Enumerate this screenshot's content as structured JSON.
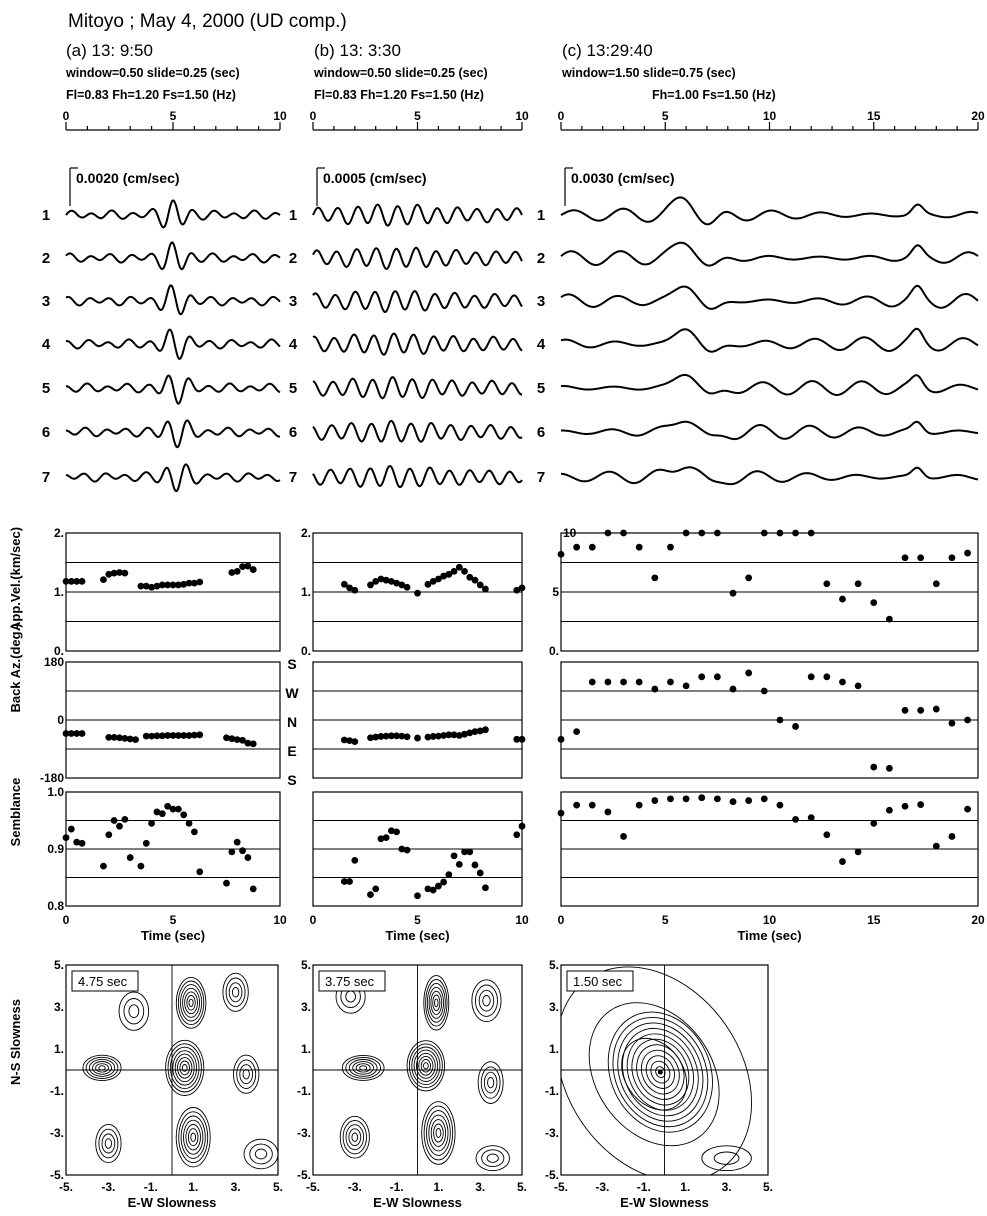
{
  "figure": {
    "title": "Mitoyo ; May 4, 2000 (UD comp.)"
  },
  "panels": [
    {
      "id": "a",
      "heading": "(a) 13: 9:50",
      "params_line1": "window=0.50 slide=0.25 (sec)",
      "params_line2": "Fl=0.83  Fh=1.20  Fs=1.50 (Hz)",
      "time_ticks": [
        "0",
        "5",
        "10"
      ],
      "amp_scale": "0.0020 (cm/sec)",
      "snapshot_label": "4.75  sec"
    },
    {
      "id": "b",
      "heading": "(b) 13: 3:30",
      "params_line1": "window=0.50 slide=0.25 (sec)",
      "params_line2": "Fl=0.83  Fh=1.20  Fs=1.50 (Hz)",
      "time_ticks": [
        "0",
        "5",
        "10"
      ],
      "amp_scale": "0.0005 (cm/sec)",
      "snapshot_label": "3.75  sec"
    },
    {
      "id": "c",
      "heading": "(c) 13:29:40",
      "params_line1": "window=1.50 slide=0.75 (sec)",
      "params_line2": "Fh=1.00  Fs=1.50 (Hz)",
      "time_ticks": [
        "0",
        "5",
        "10",
        "15",
        "20"
      ],
      "amp_scale": "0.0030 (cm/sec)",
      "snapshot_label": "1.50  sec"
    }
  ],
  "trace_labels": [
    "1",
    "2",
    "3",
    "4",
    "5",
    "6",
    "7"
  ],
  "axis_labels": {
    "velocity": "App.Vel.(km/sec)",
    "back_azimuth": "Back Az.(deg.)",
    "semblance": "Semblance",
    "time": "Time (sec)",
    "ns_slowness": "N-S Slowness",
    "ew_slowness": "E-W Slowness"
  },
  "direction_labels": [
    "S",
    "W",
    "N",
    "E",
    "S"
  ],
  "tick_labels": {
    "vel_ab": [
      "2.",
      "1.",
      "0."
    ],
    "vel_c": [
      "10",
      "5",
      "0."
    ],
    "baz_top": "180",
    "baz_mid": "0",
    "baz_bot": "-180",
    "sem": [
      "1.0",
      "0.9",
      "0.8"
    ],
    "slow_y": [
      "5.",
      "3.",
      "1.",
      "-1.",
      "-3.",
      "-5."
    ],
    "slow_x": [
      "-5.",
      "-3.",
      "-1.",
      "1.",
      "3.",
      "5."
    ]
  },
  "chart_data": [
    {
      "type": "scatter",
      "panel": "a",
      "name": "App.Vel.(km/sec)",
      "xlabel": "Time (sec)",
      "ylabel": "App.Vel.(km/sec)",
      "xlim": [
        0,
        10
      ],
      "ylim": [
        0,
        2
      ],
      "x": [
        0,
        0.25,
        0.5,
        0.75,
        1.75,
        2,
        2.25,
        2.5,
        2.75,
        3.5,
        3.75,
        4,
        4.25,
        4.5,
        4.75,
        5,
        5.25,
        5.5,
        5.75,
        6,
        6.25,
        7.75,
        8,
        8.25,
        8.5,
        8.75
      ],
      "y": [
        1.18,
        1.18,
        1.18,
        1.18,
        1.21,
        1.3,
        1.32,
        1.33,
        1.32,
        1.1,
        1.1,
        1.08,
        1.1,
        1.12,
        1.12,
        1.12,
        1.12,
        1.13,
        1.15,
        1.15,
        1.17,
        1.33,
        1.35,
        1.43,
        1.44,
        1.38
      ]
    },
    {
      "type": "scatter",
      "panel": "a",
      "name": "Back Az.(deg.)",
      "xlabel": "Time (sec)",
      "ylabel": "Back Az.(deg.)",
      "xlim": [
        0,
        10
      ],
      "ylim": [
        -180,
        180
      ],
      "x": [
        0,
        0.25,
        0.5,
        0.75,
        2,
        2.25,
        2.5,
        2.75,
        3,
        3.25,
        3.75,
        4,
        4.25,
        4.5,
        4.75,
        5,
        5.25,
        5.5,
        5.75,
        6,
        6.25,
        7.5,
        7.75,
        8,
        8.25,
        8.5,
        8.75
      ],
      "y": [
        -42,
        -42,
        -42,
        -42,
        -54,
        -54,
        -55,
        -57,
        -59,
        -61,
        -50,
        -50,
        -49,
        -49,
        -48,
        -48,
        -48,
        -48,
        -48,
        -47,
        -46,
        -55,
        -58,
        -61,
        -63,
        -72,
        -74
      ]
    },
    {
      "type": "scatter",
      "panel": "a",
      "name": "Semblance",
      "xlabel": "Time (sec)",
      "ylabel": "Semblance",
      "xlim": [
        0,
        10
      ],
      "ylim": [
        0.8,
        1.0
      ],
      "x": [
        0,
        0.25,
        0.5,
        0.75,
        1.75,
        2,
        2.25,
        2.5,
        2.75,
        3,
        3.5,
        3.75,
        4,
        4.25,
        4.5,
        4.75,
        5,
        5.25,
        5.5,
        5.75,
        6,
        6.25,
        7.5,
        7.75,
        8,
        8.25,
        8.5,
        8.75
      ],
      "y": [
        0.92,
        0.935,
        0.912,
        0.91,
        0.87,
        0.925,
        0.95,
        0.94,
        0.952,
        0.885,
        0.87,
        0.91,
        0.945,
        0.965,
        0.962,
        0.975,
        0.97,
        0.97,
        0.96,
        0.945,
        0.93,
        0.86,
        0.84,
        0.895,
        0.912,
        0.897,
        0.885,
        0.83
      ]
    },
    {
      "type": "scatter",
      "panel": "b",
      "name": "App.Vel.(km/sec)",
      "xlabel": "Time (sec)",
      "ylabel": "App.Vel.(km/sec)",
      "xlim": [
        0,
        10
      ],
      "ylim": [
        0,
        2
      ],
      "x": [
        1.5,
        1.75,
        2,
        2.75,
        3,
        3.25,
        3.5,
        3.75,
        4,
        4.25,
        4.5,
        5,
        5.5,
        5.75,
        6,
        6.25,
        6.5,
        6.75,
        7,
        7.25,
        7.5,
        7.75,
        8,
        8.25,
        9.75,
        10
      ],
      "y": [
        1.13,
        1.07,
        1.03,
        1.12,
        1.18,
        1.22,
        1.2,
        1.18,
        1.15,
        1.12,
        1.08,
        0.98,
        1.13,
        1.18,
        1.22,
        1.27,
        1.3,
        1.35,
        1.42,
        1.35,
        1.25,
        1.2,
        1.12,
        1.05,
        1.03,
        1.07
      ]
    },
    {
      "type": "scatter",
      "panel": "b",
      "name": "Back Az.(deg.)",
      "xlabel": "Time (sec)",
      "ylabel": "Back Az.(deg.)",
      "xlim": [
        0,
        10
      ],
      "ylim": [
        -180,
        180
      ],
      "x": [
        1.5,
        1.75,
        2,
        2.75,
        3,
        3.25,
        3.5,
        3.75,
        4,
        4.25,
        4.5,
        5,
        5.5,
        5.75,
        6,
        6.25,
        6.5,
        6.75,
        7,
        7.25,
        7.5,
        7.75,
        8,
        8.25,
        9.75,
        10
      ],
      "y": [
        -62,
        -64,
        -67,
        -55,
        -53,
        -51,
        -50,
        -49,
        -49,
        -50,
        -52,
        -56,
        -53,
        -51,
        -50,
        -48,
        -46,
        -46,
        -48,
        -44,
        -40,
        -36,
        -34,
        -30,
        -60,
        -60
      ]
    },
    {
      "type": "scatter",
      "panel": "b",
      "name": "Semblance",
      "xlabel": "Time (sec)",
      "ylabel": "Semblance",
      "xlim": [
        0,
        10
      ],
      "ylim": [
        0.8,
        1.0
      ],
      "x": [
        1.5,
        1.75,
        2,
        2.75,
        3,
        3.25,
        3.5,
        3.75,
        4,
        4.25,
        4.5,
        5,
        5.5,
        5.75,
        6,
        6.25,
        6.5,
        6.75,
        7,
        7.25,
        7.5,
        7.75,
        8,
        8.25,
        9.75,
        10
      ],
      "y": [
        0.843,
        0.843,
        0.88,
        0.82,
        0.83,
        0.918,
        0.92,
        0.932,
        0.93,
        0.9,
        0.898,
        0.818,
        0.83,
        0.828,
        0.835,
        0.842,
        0.855,
        0.888,
        0.873,
        0.895,
        0.895,
        0.872,
        0.858,
        0.832,
        0.925,
        0.94
      ]
    },
    {
      "type": "scatter",
      "panel": "c",
      "name": "App.Vel.(km/sec)",
      "xlabel": "Time (sec)",
      "ylabel": "App.Vel.(km/sec)",
      "xlim": [
        0,
        20
      ],
      "ylim": [
        0,
        10
      ],
      "x": [
        0,
        0.75,
        1.5,
        2.25,
        3,
        3.75,
        4.5,
        5.25,
        6,
        6.75,
        7.5,
        8.25,
        9,
        9.75,
        10.5,
        11.25,
        12,
        12.75,
        13.5,
        14.25,
        15,
        15.75,
        16.5,
        17.25,
        18,
        18.75,
        19.5
      ],
      "y": [
        8.2,
        8.8,
        8.8,
        10,
        10,
        8.8,
        6.2,
        8.8,
        10,
        10,
        10,
        4.9,
        6.2,
        10,
        10,
        10,
        10,
        5.7,
        4.4,
        5.7,
        4.1,
        2.7,
        7.9,
        7.9,
        5.7,
        7.9,
        8.3
      ]
    },
    {
      "type": "scatter",
      "panel": "c",
      "name": "Back Az.(deg.)",
      "xlabel": "Time (sec)",
      "ylabel": "Back Az.(deg.)",
      "xlim": [
        0,
        20
      ],
      "ylim": [
        -180,
        180
      ],
      "x": [
        0,
        0.75,
        1.5,
        2.25,
        3,
        3.75,
        4.5,
        5.25,
        6,
        6.75,
        7.5,
        8.25,
        9,
        9.75,
        10.5,
        11.25,
        12,
        12.75,
        13.5,
        14.25,
        15,
        15.75,
        16.5,
        17.25,
        18,
        18.75,
        19.5
      ],
      "y": [
        -60,
        -36,
        118,
        118,
        118,
        118,
        96,
        118,
        106,
        134,
        134,
        96,
        146,
        90,
        0,
        -20,
        134,
        134,
        118,
        106,
        -146,
        -150,
        30,
        30,
        34,
        -10,
        0
      ]
    },
    {
      "type": "scatter",
      "panel": "c",
      "name": "Semblance",
      "xlabel": "Time (sec)",
      "ylabel": "Semblance",
      "xlim": [
        0,
        20
      ],
      "ylim": [
        0.8,
        1.0
      ],
      "x": [
        0,
        0.75,
        1.5,
        2.25,
        3,
        3.75,
        4.5,
        5.25,
        6,
        6.75,
        7.5,
        8.25,
        9,
        9.75,
        10.5,
        11.25,
        12,
        12.75,
        13.5,
        14.25,
        15,
        15.75,
        16.5,
        17.25,
        18,
        18.75,
        19.5
      ],
      "y": [
        0.963,
        0.977,
        0.977,
        0.965,
        0.922,
        0.977,
        0.985,
        0.988,
        0.988,
        0.99,
        0.988,
        0.983,
        0.985,
        0.988,
        0.977,
        0.952,
        0.955,
        0.925,
        0.878,
        0.895,
        0.945,
        0.968,
        0.975,
        0.978,
        0.905,
        0.922,
        0.97
      ]
    }
  ]
}
